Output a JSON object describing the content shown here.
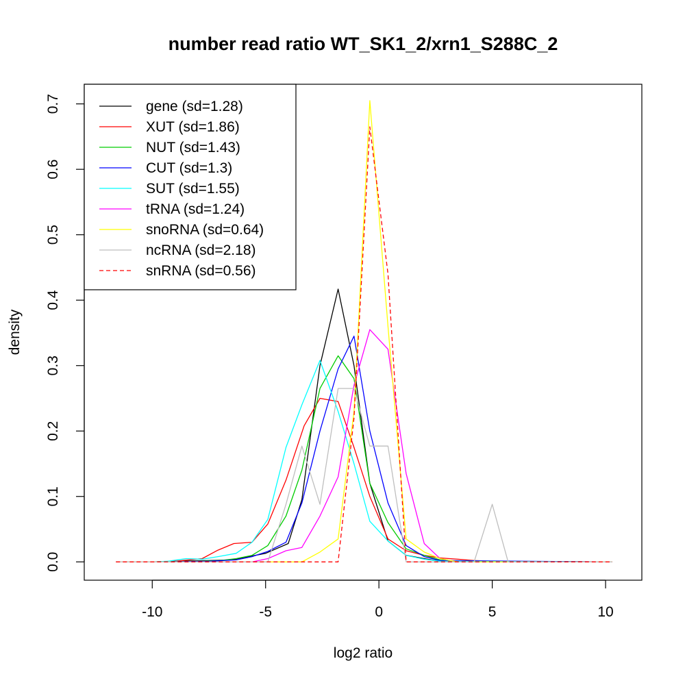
{
  "chart_data": {
    "type": "line",
    "title": "number read ratio WT_SK1_2/xrn1_S288C_2",
    "xlabel": "log2 ratio",
    "ylabel": "density",
    "xlim": [
      -13.0,
      11.6
    ],
    "ylim": [
      -0.028,
      0.73
    ],
    "xticks": [
      -10,
      -5,
      0,
      5,
      10
    ],
    "xtick_labels": [
      "-10",
      "-5",
      "0",
      "5",
      "10"
    ],
    "yticks": [
      0.0,
      0.1,
      0.2,
      0.3,
      0.4,
      0.5,
      0.6,
      0.7
    ],
    "ytick_labels": [
      "0.0",
      "0.1",
      "0.2",
      "0.3",
      "0.4",
      "0.5",
      "0.6",
      "0.7"
    ],
    "grid": false,
    "legend_position": "top-left",
    "series": [
      {
        "name": "gene (sd=1.28)",
        "color": "#000000",
        "dash": false,
        "points": [
          [
            -11.6,
            0.0
          ],
          [
            -10.0,
            0.0
          ],
          [
            -9.0,
            0.001
          ],
          [
            -7.5,
            0.002
          ],
          [
            -6.5,
            0.003
          ],
          [
            -5.0,
            0.013
          ],
          [
            -4.0,
            0.028
          ],
          [
            -3.4,
            0.095
          ],
          [
            -2.6,
            0.3
          ],
          [
            -1.8,
            0.417
          ],
          [
            -1.1,
            0.3
          ],
          [
            -0.4,
            0.12
          ],
          [
            0.4,
            0.032
          ],
          [
            1.2,
            0.01
          ],
          [
            2.0,
            0.005
          ],
          [
            2.7,
            0.001
          ],
          [
            10.3,
            0.0
          ]
        ]
      },
      {
        "name": "XUT (sd=1.86)",
        "color": "#ff0000",
        "dash": false,
        "points": [
          [
            -11.6,
            0.0
          ],
          [
            -10.0,
            0.0
          ],
          [
            -9.0,
            0.001
          ],
          [
            -7.8,
            0.005
          ],
          [
            -7.1,
            0.018
          ],
          [
            -6.4,
            0.028
          ],
          [
            -5.6,
            0.03
          ],
          [
            -4.9,
            0.058
          ],
          [
            -4.1,
            0.125
          ],
          [
            -3.3,
            0.208
          ],
          [
            -2.6,
            0.25
          ],
          [
            -1.8,
            0.245
          ],
          [
            -1.1,
            0.175
          ],
          [
            -0.4,
            0.1
          ],
          [
            0.4,
            0.035
          ],
          [
            1.2,
            0.017
          ],
          [
            2.0,
            0.01
          ],
          [
            2.7,
            0.006
          ],
          [
            3.5,
            0.004
          ],
          [
            4.2,
            0.002
          ],
          [
            5.0,
            0.001
          ],
          [
            10.3,
            0.0
          ]
        ]
      },
      {
        "name": "NUT (sd=1.43)",
        "color": "#00cc00",
        "dash": false,
        "points": [
          [
            -11.6,
            0.0
          ],
          [
            -10.0,
            0.0
          ],
          [
            -8.0,
            0.001
          ],
          [
            -7.0,
            0.002
          ],
          [
            -6.3,
            0.005
          ],
          [
            -5.6,
            0.01
          ],
          [
            -4.9,
            0.025
          ],
          [
            -4.1,
            0.07
          ],
          [
            -3.4,
            0.14
          ],
          [
            -2.6,
            0.265
          ],
          [
            -1.8,
            0.315
          ],
          [
            -1.1,
            0.28
          ],
          [
            -0.4,
            0.12
          ],
          [
            0.4,
            0.06
          ],
          [
            1.2,
            0.02
          ],
          [
            2.0,
            0.01
          ],
          [
            2.7,
            0.003
          ],
          [
            3.5,
            0.001
          ],
          [
            10.3,
            0.0
          ]
        ]
      },
      {
        "name": "CUT (sd=1.3)",
        "color": "#0000ff",
        "dash": false,
        "points": [
          [
            -11.6,
            0.0
          ],
          [
            -10.0,
            0.0
          ],
          [
            -7.5,
            0.001
          ],
          [
            -6.3,
            0.003
          ],
          [
            -5.6,
            0.008
          ],
          [
            -4.9,
            0.016
          ],
          [
            -4.1,
            0.03
          ],
          [
            -3.4,
            0.09
          ],
          [
            -2.6,
            0.2
          ],
          [
            -1.8,
            0.295
          ],
          [
            -1.1,
            0.345
          ],
          [
            -0.4,
            0.2
          ],
          [
            0.4,
            0.09
          ],
          [
            1.2,
            0.025
          ],
          [
            2.0,
            0.008
          ],
          [
            2.7,
            0.002
          ],
          [
            10.3,
            0.0
          ]
        ]
      },
      {
        "name": "SUT (sd=1.55)",
        "color": "#00ffff",
        "dash": false,
        "points": [
          [
            -11.6,
            0.0
          ],
          [
            -10.0,
            0.0
          ],
          [
            -9.3,
            0.001
          ],
          [
            -8.5,
            0.005
          ],
          [
            -7.8,
            0.004
          ],
          [
            -7.1,
            0.008
          ],
          [
            -6.3,
            0.013
          ],
          [
            -5.6,
            0.03
          ],
          [
            -4.9,
            0.065
          ],
          [
            -4.1,
            0.175
          ],
          [
            -3.4,
            0.24
          ],
          [
            -2.6,
            0.308
          ],
          [
            -1.8,
            0.23
          ],
          [
            -1.1,
            0.15
          ],
          [
            -0.4,
            0.062
          ],
          [
            0.4,
            0.032
          ],
          [
            1.2,
            0.01
          ],
          [
            2.0,
            0.004
          ],
          [
            2.7,
            0.001
          ],
          [
            10.3,
            0.0
          ]
        ]
      },
      {
        "name": "tRNA (sd=1.24)",
        "color": "#ff00ff",
        "dash": false,
        "points": [
          [
            -11.6,
            0.0
          ],
          [
            -5.6,
            0.0
          ],
          [
            -4.9,
            0.005
          ],
          [
            -4.1,
            0.017
          ],
          [
            -3.4,
            0.022
          ],
          [
            -2.6,
            0.07
          ],
          [
            -1.8,
            0.13
          ],
          [
            -1.1,
            0.27
          ],
          [
            -0.4,
            0.355
          ],
          [
            0.4,
            0.325
          ],
          [
            1.2,
            0.135
          ],
          [
            2.0,
            0.028
          ],
          [
            2.7,
            0.005
          ],
          [
            3.5,
            0.0
          ],
          [
            10.3,
            0.0
          ]
        ]
      },
      {
        "name": "snoRNA (sd=0.64)",
        "color": "#ffff00",
        "dash": false,
        "points": [
          [
            -11.6,
            0.0
          ],
          [
            -3.4,
            0.0
          ],
          [
            -2.6,
            0.015
          ],
          [
            -1.8,
            0.035
          ],
          [
            -1.1,
            0.23
          ],
          [
            -0.4,
            0.705
          ],
          [
            0.4,
            0.36
          ],
          [
            1.2,
            0.035
          ],
          [
            2.0,
            0.015
          ],
          [
            2.7,
            0.005
          ],
          [
            3.5,
            0.0
          ],
          [
            10.3,
            0.0
          ]
        ]
      },
      {
        "name": "ncRNA (sd=2.18)",
        "color": "#bebebe",
        "dash": false,
        "points": [
          [
            -11.6,
            0.0
          ],
          [
            -4.9,
            0.0
          ],
          [
            -4.1,
            0.088
          ],
          [
            -3.4,
            0.177
          ],
          [
            -2.6,
            0.088
          ],
          [
            -1.8,
            0.265
          ],
          [
            -1.1,
            0.265
          ],
          [
            -0.4,
            0.177
          ],
          [
            0.4,
            0.177
          ],
          [
            1.2,
            0.0
          ],
          [
            4.2,
            0.0
          ],
          [
            5.0,
            0.088
          ],
          [
            5.7,
            0.0
          ],
          [
            10.3,
            0.0
          ]
        ]
      },
      {
        "name": "snRNA (sd=0.56)",
        "color": "#ff0000",
        "dash": true,
        "points": [
          [
            -11.6,
            0.0
          ],
          [
            -1.8,
            0.0
          ],
          [
            -1.1,
            0.22
          ],
          [
            -0.4,
            0.665
          ],
          [
            0.4,
            0.44
          ],
          [
            1.2,
            0.0
          ],
          [
            10.3,
            0.0
          ]
        ]
      }
    ]
  }
}
